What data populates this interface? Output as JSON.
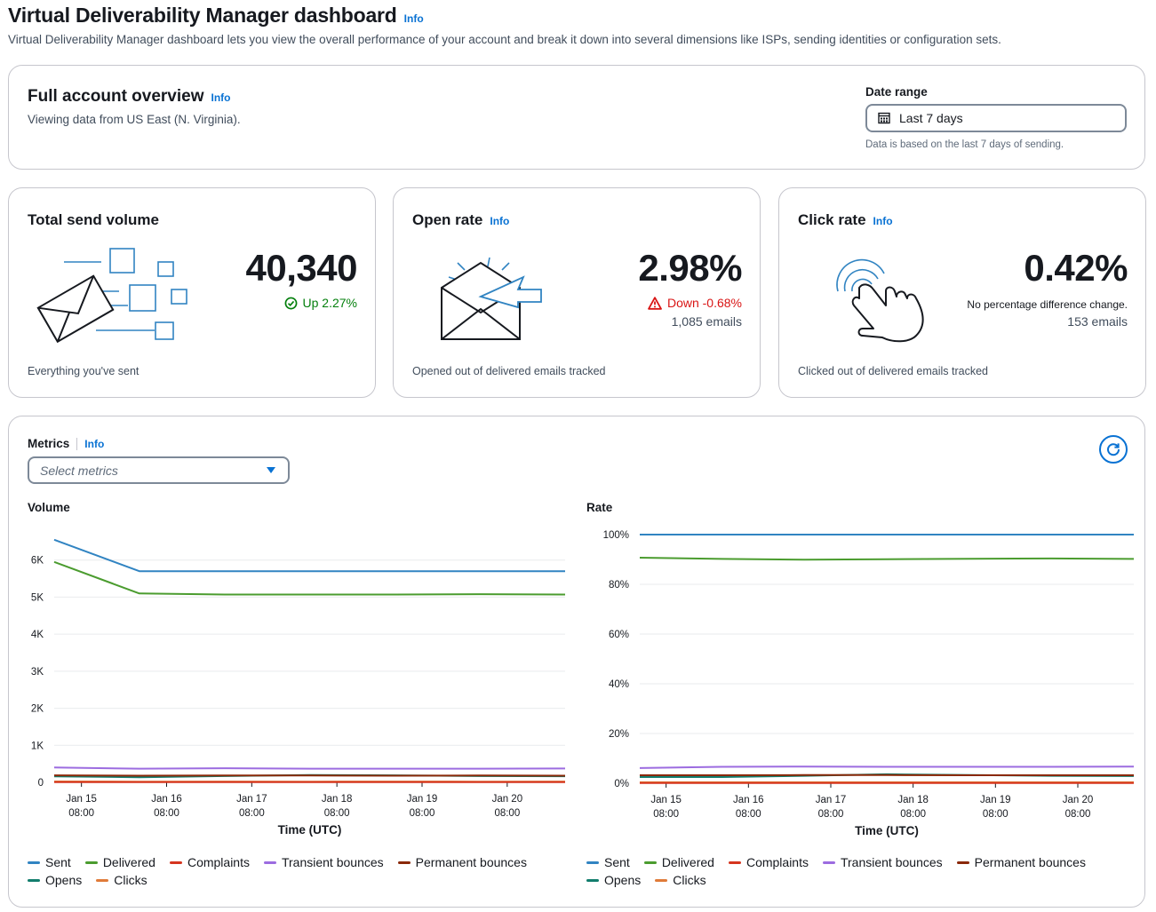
{
  "page": {
    "title": "Virtual Deliverability Manager dashboard",
    "info": "Info",
    "description": "Virtual Deliverability Manager dashboard lets you view the overall performance of your account and break it down into several dimensions like ISPs, sending identities or configuration sets."
  },
  "overview": {
    "title": "Full account overview",
    "info": "Info",
    "subtitle": "Viewing data from US East (N. Virginia).",
    "date_range": {
      "label": "Date range",
      "value": "Last 7 days",
      "hint": "Data is based on the last 7 days of sending.",
      "icon": "calendar-icon"
    }
  },
  "cards": {
    "send_volume": {
      "title": "Total send volume",
      "value": "40,340",
      "delta": "Up 2.27%",
      "footer": "Everything you've sent"
    },
    "open_rate": {
      "title": "Open rate",
      "info": "Info",
      "value": "2.98%",
      "delta": "Down -0.68%",
      "sub": "1,085 emails",
      "footer": "Opened out of delivered emails tracked"
    },
    "click_rate": {
      "title": "Click rate",
      "info": "Info",
      "value": "0.42%",
      "delta": "No percentage difference change.",
      "sub": "153 emails",
      "footer": "Clicked out of delivered emails tracked"
    }
  },
  "metrics": {
    "label": "Metrics",
    "info": "Info",
    "select_placeholder": "Select metrics"
  },
  "colors": {
    "sent": "#3184c2",
    "delivered": "#4b9c2f",
    "complaints": "#d5351f",
    "transient": "#9c6ce0",
    "permanent": "#8a2808",
    "opens": "#127d6d",
    "clicks": "#e07b39",
    "link": "#0972d3",
    "success": "#037f0c",
    "error": "#d91515"
  },
  "chart_data": [
    {
      "type": "line",
      "title": "Volume",
      "xlabel": "Time (UTC)",
      "ylabel": "",
      "x": [
        0,
        1,
        2,
        3,
        4,
        5,
        6
      ],
      "x_ticks": [
        {
          "line1": "Jan 15",
          "line2": "08:00",
          "pos": 0.32
        },
        {
          "line1": "Jan 16",
          "line2": "08:00",
          "pos": 1.32
        },
        {
          "line1": "Jan 17",
          "line2": "08:00",
          "pos": 2.32
        },
        {
          "line1": "Jan 18",
          "line2": "08:00",
          "pos": 3.32
        },
        {
          "line1": "Jan 19",
          "line2": "08:00",
          "pos": 4.32
        },
        {
          "line1": "Jan 20",
          "line2": "08:00",
          "pos": 5.32
        }
      ],
      "xlim": [
        0,
        6
      ],
      "ylim": [
        0,
        7000
      ],
      "y_ticks": [
        {
          "value": 0,
          "label": "0"
        },
        {
          "value": 1000,
          "label": "1K"
        },
        {
          "value": 2000,
          "label": "2K"
        },
        {
          "value": 3000,
          "label": "3K"
        },
        {
          "value": 4000,
          "label": "4K"
        },
        {
          "value": 5000,
          "label": "5K"
        },
        {
          "value": 6000,
          "label": "6K"
        }
      ],
      "series": [
        {
          "name": "Sent",
          "key": "sent",
          "values": [
            6550,
            5700,
            5700,
            5700,
            5700,
            5700,
            5700
          ]
        },
        {
          "name": "Delivered",
          "key": "delivered",
          "values": [
            5950,
            5100,
            5070,
            5070,
            5070,
            5080,
            5070
          ]
        },
        {
          "name": "Complaints",
          "key": "complaints",
          "values": [
            5,
            5,
            5,
            5,
            5,
            5,
            5
          ]
        },
        {
          "name": "Transient bounces",
          "key": "transient",
          "values": [
            400,
            370,
            380,
            370,
            370,
            370,
            375
          ]
        },
        {
          "name": "Permanent bounces",
          "key": "permanent",
          "values": [
            190,
            180,
            185,
            185,
            180,
            185,
            180
          ]
        },
        {
          "name": "Opens",
          "key": "opens",
          "values": [
            160,
            140,
            170,
            200,
            190,
            170,
            165
          ]
        },
        {
          "name": "Clicks",
          "key": "clicks",
          "values": [
            25,
            20,
            22,
            20,
            22,
            20,
            22
          ]
        }
      ],
      "legend": "bottom"
    },
    {
      "type": "line",
      "title": "Rate",
      "xlabel": "Time (UTC)",
      "ylabel": "",
      "x": [
        0,
        1,
        2,
        3,
        4,
        5,
        6
      ],
      "x_ticks": [
        {
          "line1": "Jan 15",
          "line2": "08:00",
          "pos": 0.32
        },
        {
          "line1": "Jan 16",
          "line2": "08:00",
          "pos": 1.32
        },
        {
          "line1": "Jan 17",
          "line2": "08:00",
          "pos": 2.32
        },
        {
          "line1": "Jan 18",
          "line2": "08:00",
          "pos": 3.32
        },
        {
          "line1": "Jan 19",
          "line2": "08:00",
          "pos": 4.32
        },
        {
          "line1": "Jan 20",
          "line2": "08:00",
          "pos": 5.32
        }
      ],
      "xlim": [
        0,
        6
      ],
      "ylim": [
        0,
        100
      ],
      "y_ticks": [
        {
          "value": 0,
          "label": "0%"
        },
        {
          "value": 20,
          "label": "20%"
        },
        {
          "value": 40,
          "label": "40%"
        },
        {
          "value": 60,
          "label": "60%"
        },
        {
          "value": 80,
          "label": "80%"
        },
        {
          "value": 100,
          "label": "100%"
        }
      ],
      "series": [
        {
          "name": "Sent",
          "key": "sent",
          "values": [
            100,
            100,
            100,
            100,
            100,
            100,
            100
          ]
        },
        {
          "name": "Delivered",
          "key": "delivered",
          "values": [
            90.7,
            90.2,
            89.9,
            90.1,
            90.3,
            90.4,
            90.2
          ]
        },
        {
          "name": "Complaints",
          "key": "complaints",
          "values": [
            0.1,
            0.1,
            0.1,
            0.1,
            0.1,
            0.1,
            0.1
          ]
        },
        {
          "name": "Transient bounces",
          "key": "transient",
          "values": [
            6.1,
            6.6,
            6.7,
            6.6,
            6.6,
            6.6,
            6.7
          ]
        },
        {
          "name": "Permanent bounces",
          "key": "permanent",
          "values": [
            3.2,
            3.2,
            3.3,
            3.3,
            3.2,
            3.2,
            3.2
          ]
        },
        {
          "name": "Opens",
          "key": "opens",
          "values": [
            2.5,
            2.5,
            3.0,
            3.6,
            3.3,
            3.0,
            2.9
          ]
        },
        {
          "name": "Clicks",
          "key": "clicks",
          "values": [
            0.4,
            0.4,
            0.4,
            0.4,
            0.4,
            0.4,
            0.4
          ]
        }
      ],
      "legend": "bottom"
    }
  ]
}
